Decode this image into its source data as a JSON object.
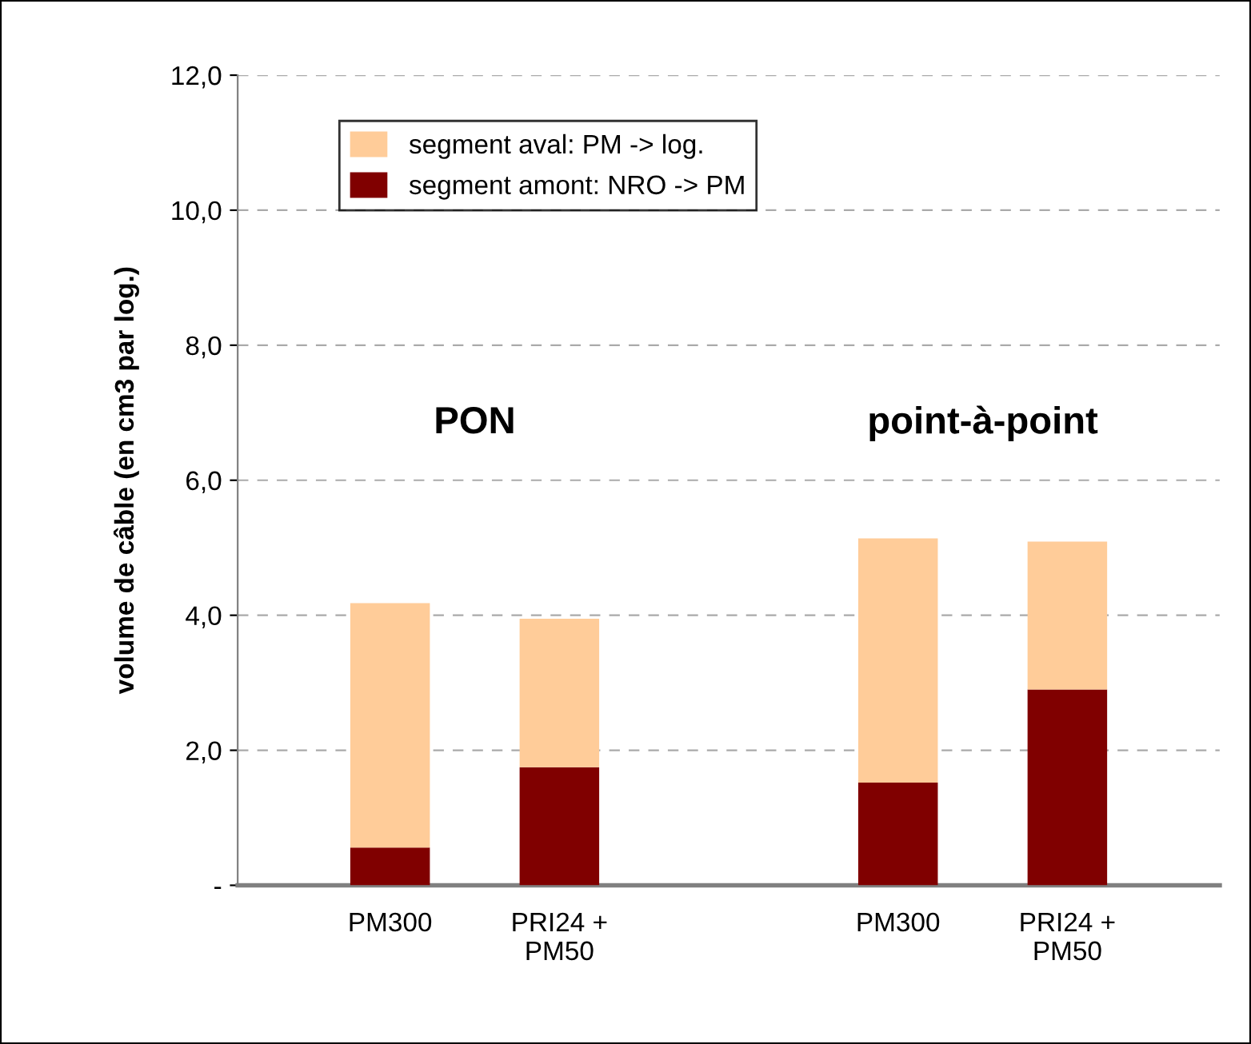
{
  "chart_data": {
    "type": "bar",
    "stacked": true,
    "ylabel": "volume de câble (en cm3 par log.)",
    "categories": [
      "PM300",
      "PRI24 +\nPM50",
      null,
      "PM300",
      "PRI24 +\nPM50"
    ],
    "series": [
      {
        "name": "segment amont: NRO -> PM",
        "color": "#800000",
        "values": [
          0.56,
          1.75,
          null,
          1.52,
          2.9
        ]
      },
      {
        "name": "segment aval: PM -> log.",
        "color": "#ffcc99",
        "values": [
          3.62,
          2.2,
          null,
          3.62,
          2.19
        ]
      }
    ],
    "annotations": [
      "PON",
      "point-à-point"
    ],
    "ylim": [
      0,
      12
    ],
    "yticks": [
      {
        "value": 0,
        "label": "-"
      },
      {
        "value": 2,
        "label": "2,0"
      },
      {
        "value": 4,
        "label": "4,0"
      },
      {
        "value": 6,
        "label": "6,0"
      },
      {
        "value": 8,
        "label": "8,0"
      },
      {
        "value": 10,
        "label": "10,0"
      },
      {
        "value": 12,
        "label": "12,0"
      }
    ],
    "grid": "y",
    "legend": "top left"
  }
}
